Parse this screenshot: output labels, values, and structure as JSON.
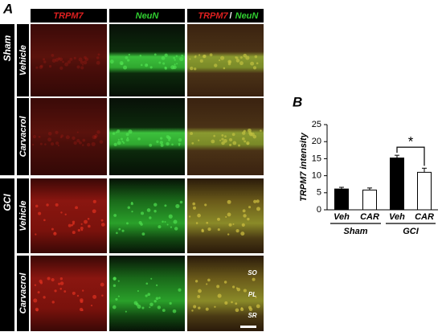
{
  "panel_a": {
    "label": "A",
    "columns": [
      "TRPM7",
      "NeuN"
    ],
    "merged_column": {
      "first": "TRPM7",
      "separator": "/",
      "second": "NeuN"
    },
    "groups": [
      {
        "label": "Sham",
        "rows": [
          "Vehicle",
          "Carvacrol"
        ]
      },
      {
        "label": "GCI",
        "rows": [
          "Vehicle",
          "Carvacrol"
        ]
      }
    ],
    "layers": [
      "SO",
      "PL",
      "SR"
    ]
  },
  "chart_data": {
    "type": "bar",
    "panel_label": "B",
    "y_label": "TRPM7 intensity",
    "categories": [
      "Veh",
      "CAR",
      "Veh",
      "CAR"
    ],
    "groups": [
      "Sham",
      "GCI"
    ],
    "values": [
      6.1,
      5.8,
      15.2,
      11.0
    ],
    "errors": [
      0.5,
      0.6,
      0.8,
      1.2
    ],
    "colors": [
      "#000000",
      "#ffffff",
      "#000000",
      "#ffffff"
    ],
    "ylim": [
      0,
      25
    ],
    "yticks": [
      0,
      5,
      10,
      15,
      20,
      25
    ],
    "annotation": "*"
  }
}
